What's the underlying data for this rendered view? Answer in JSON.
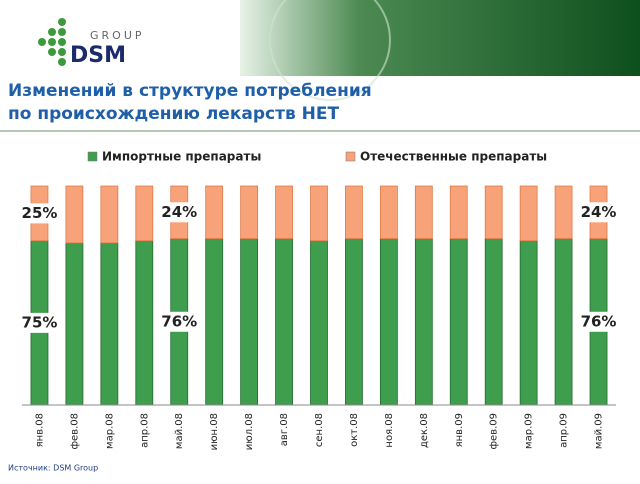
{
  "header": {
    "logo": "DSM",
    "logo_sub": "GROUP"
  },
  "title": [
    "Изменений в структуре потребления",
    "по происхождению лекарств НЕТ"
  ],
  "source": "Источник: DSM Group",
  "chart_data": {
    "type": "stacked_bar_100",
    "categories": [
      "янв.08",
      "фев.08",
      "мар.08",
      "апр.08",
      "май.08",
      "июн.08",
      "июл.08",
      "авг.08",
      "сен.08",
      "окт.08",
      "ноя.08",
      "дек.08",
      "янв.09",
      "фев.09",
      "мар.09",
      "апр.09",
      "май.09"
    ],
    "series": [
      {
        "name": "Импортные препараты",
        "color": "#3f9d4e",
        "values": [
          75,
          74,
          74,
          75,
          76,
          76,
          76,
          76,
          75,
          76,
          76,
          76,
          76,
          76,
          75,
          76,
          76
        ],
        "value_labels": [
          "75%",
          null,
          null,
          null,
          "76%",
          null,
          null,
          null,
          null,
          null,
          null,
          null,
          null,
          null,
          null,
          null,
          "76%"
        ]
      },
      {
        "name": "Отечественные препараты",
        "color": "#f7a278",
        "values": [
          25,
          26,
          26,
          25,
          24,
          24,
          24,
          24,
          25,
          24,
          24,
          24,
          24,
          24,
          25,
          24,
          24
        ],
        "value_labels": [
          "25%",
          null,
          null,
          null,
          "24%",
          null,
          null,
          null,
          null,
          null,
          null,
          null,
          null,
          null,
          null,
          null,
          "24%"
        ]
      }
    ],
    "legend": "top"
  }
}
